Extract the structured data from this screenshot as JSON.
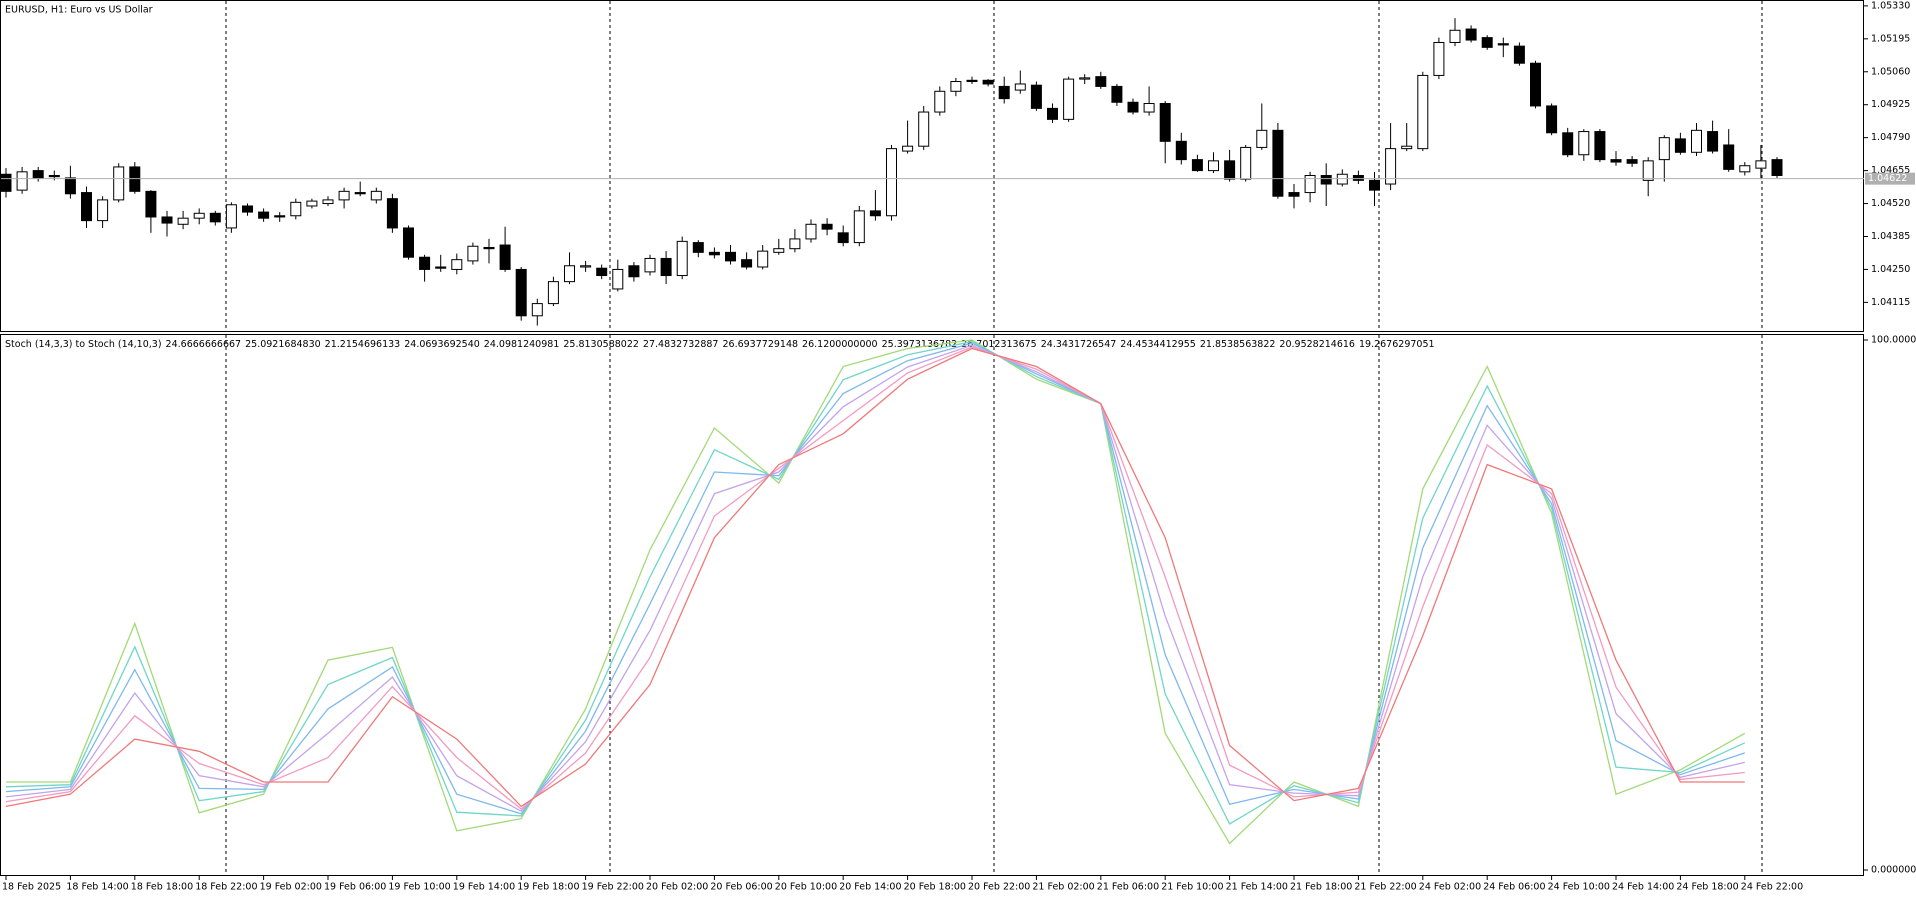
{
  "chart_data": [
    {
      "type": "candlestick",
      "title": "EURUSD, H1:  Euro vs US Dollar",
      "open": [
        1.0464,
        1.04575,
        1.04655,
        1.04635,
        1.04625,
        1.04565,
        1.0445,
        1.04535,
        1.0467,
        1.0457,
        1.04465,
        1.04435,
        1.0446,
        1.0448,
        1.0442,
        1.0451,
        1.04485,
        1.0447,
        1.0447,
        1.0451,
        1.0452,
        1.04535,
        1.04565,
        1.04535,
        1.0454,
        1.0442,
        1.043,
        1.0426,
        1.0425,
        1.04285,
        1.0434,
        1.0435,
        1.0425,
        1.0406,
        1.0411,
        1.042,
        1.0426,
        1.04255,
        1.0417,
        1.04265,
        1.0424,
        1.04295,
        1.04225,
        1.0436,
        1.0432,
        1.0432,
        1.0429,
        1.0426,
        1.0432,
        1.04335,
        1.04375,
        1.04435,
        1.044,
        1.0436,
        1.0449,
        1.0447,
        1.04735,
        1.04755,
        1.04895,
        1.0498,
        1.05025,
        1.05025,
        1.05,
        1.04985,
        1.05005,
        1.0491,
        1.04865,
        1.0503,
        1.0504,
        1.05,
        1.04935,
        1.04895,
        1.0493,
        1.04775,
        1.047,
        1.04655,
        1.04695,
        1.0462,
        1.0475,
        1.0482,
        1.04565,
        1.04565,
        1.04635,
        1.046,
        1.04635,
        1.04615,
        1.046,
        1.04745,
        1.04745,
        1.05045,
        1.0518,
        1.05235,
        1.052,
        1.05175,
        1.05165,
        1.05095,
        1.0492,
        1.0481,
        1.0472,
        1.04815,
        1.047,
        1.047,
        1.04615,
        1.047,
        1.04785,
        1.0473,
        1.04815,
        1.0476,
        1.0465,
        1.04665,
        1.047
      ],
      "high": [
        1.04665,
        1.0467,
        1.0467,
        1.04655,
        1.04675,
        1.0459,
        1.0455,
        1.04685,
        1.0469,
        1.04575,
        1.0449,
        1.0449,
        1.045,
        1.0449,
        1.04525,
        1.0452,
        1.045,
        1.04485,
        1.0454,
        1.0454,
        1.0455,
        1.04585,
        1.0461,
        1.04585,
        1.0456,
        1.0443,
        1.0431,
        1.0431,
        1.04315,
        1.0436,
        1.04375,
        1.04425,
        1.0426,
        1.0413,
        1.0422,
        1.0432,
        1.04285,
        1.0427,
        1.0429,
        1.0428,
        1.0431,
        1.04325,
        1.04385,
        1.0437,
        1.0434,
        1.0435,
        1.0432,
        1.0435,
        1.04375,
        1.04415,
        1.04455,
        1.0446,
        1.0443,
        1.0451,
        1.04575,
        1.0476,
        1.0486,
        1.0492,
        1.05,
        1.05035,
        1.0504,
        1.0503,
        1.0504,
        1.05065,
        1.0502,
        1.0493,
        1.0504,
        1.0505,
        1.0506,
        1.0501,
        1.0495,
        1.05,
        1.0494,
        1.0481,
        1.0472,
        1.0473,
        1.0474,
        1.0476,
        1.0493,
        1.0485,
        1.046,
        1.0465,
        1.04685,
        1.0466,
        1.04655,
        1.0465,
        1.0485,
        1.0485,
        1.0506,
        1.052,
        1.0528,
        1.0525,
        1.0521,
        1.052,
        1.0518,
        1.05105,
        1.0493,
        1.0483,
        1.04825,
        1.04825,
        1.04735,
        1.04715,
        1.0471,
        1.048,
        1.0481,
        1.0485,
        1.0486,
        1.04825,
        1.0469,
        1.0476,
        1.0471
      ],
      "low": [
        1.04545,
        1.0456,
        1.0461,
        1.04615,
        1.0454,
        1.0442,
        1.0442,
        1.04525,
        1.0456,
        1.044,
        1.04385,
        1.04415,
        1.04435,
        1.0443,
        1.044,
        1.0447,
        1.04445,
        1.04445,
        1.04455,
        1.045,
        1.0451,
        1.045,
        1.0455,
        1.0452,
        1.044,
        1.0429,
        1.042,
        1.0424,
        1.0423,
        1.0427,
        1.04275,
        1.0424,
        1.0404,
        1.0402,
        1.041,
        1.0419,
        1.0424,
        1.0421,
        1.0416,
        1.042,
        1.04225,
        1.0419,
        1.0421,
        1.043,
        1.04295,
        1.0427,
        1.0425,
        1.0425,
        1.0431,
        1.0432,
        1.0436,
        1.0439,
        1.04345,
        1.04345,
        1.0445,
        1.0445,
        1.04725,
        1.0474,
        1.0488,
        1.0496,
        1.0501,
        1.05,
        1.0493,
        1.0497,
        1.049,
        1.0485,
        1.04855,
        1.0501,
        1.0499,
        1.0492,
        1.04885,
        1.0488,
        1.04685,
        1.0468,
        1.0465,
        1.04645,
        1.0461,
        1.0461,
        1.0474,
        1.0454,
        1.045,
        1.04525,
        1.0451,
        1.0459,
        1.046,
        1.0451,
        1.04575,
        1.04735,
        1.04735,
        1.0503,
        1.05165,
        1.0518,
        1.0515,
        1.0512,
        1.05085,
        1.0491,
        1.048,
        1.0471,
        1.04695,
        1.0469,
        1.04675,
        1.0467,
        1.0455,
        1.0461,
        1.0472,
        1.04715,
        1.04725,
        1.0465,
        1.04635,
        1.0462,
        1.04625
      ],
      "close": [
        1.0457,
        1.0465,
        1.04625,
        1.0463,
        1.0456,
        1.0445,
        1.04535,
        1.0467,
        1.0457,
        1.04465,
        1.0444,
        1.0446,
        1.0448,
        1.04445,
        1.04515,
        1.04485,
        1.0446,
        1.04465,
        1.04525,
        1.0453,
        1.04535,
        1.0457,
        1.0456,
        1.0457,
        1.0442,
        1.043,
        1.0425,
        1.04255,
        1.0429,
        1.04345,
        1.04335,
        1.0425,
        1.0406,
        1.0411,
        1.042,
        1.04265,
        1.04265,
        1.04225,
        1.0425,
        1.0422,
        1.04295,
        1.04225,
        1.04365,
        1.0432,
        1.0431,
        1.04285,
        1.0426,
        1.04325,
        1.04335,
        1.04375,
        1.04435,
        1.04415,
        1.0436,
        1.0449,
        1.0447,
        1.04745,
        1.04755,
        1.04895,
        1.0498,
        1.0502,
        1.0502,
        1.0501,
        1.0495,
        1.0501,
        1.0491,
        1.04865,
        1.0503,
        1.05035,
        1.05,
        1.04935,
        1.04895,
        1.0493,
        1.04775,
        1.047,
        1.04655,
        1.04695,
        1.0462,
        1.0475,
        1.0482,
        1.0455,
        1.0455,
        1.04635,
        1.046,
        1.0464,
        1.04615,
        1.04575,
        1.04745,
        1.04755,
        1.05045,
        1.0518,
        1.0523,
        1.0519,
        1.0516,
        1.0517,
        1.05095,
        1.0492,
        1.0481,
        1.0472,
        1.04815,
        1.047,
        1.0469,
        1.04685,
        1.04695,
        1.0479,
        1.0473,
        1.0482,
        1.04735,
        1.0466,
        1.04675,
        1.04695,
        1.04635
      ],
      "up_color": "#ffffff",
      "down_color": "#000000",
      "ylim": [
        1.0401,
        1.0535
      ],
      "yticks": [
        {
          "value": 1.0533,
          "label": "1.05330"
        },
        1.05195,
        {
          "value": 1.0506,
          "label": "1.05060"
        },
        1.04925,
        {
          "value": 1.0479,
          "label": "1.04790"
        },
        1.04655,
        {
          "value": 1.0452,
          "label": "1.04520"
        },
        1.04385,
        {
          "value": 1.0425,
          "label": "1.04250"
        },
        1.04115
      ],
      "last_price": 1.04622
    },
    {
      "type": "line",
      "title": "Stoch (14,3,3) to Stoch (14,10,3)",
      "status_values": [
        "24.6666666667",
        "25.0921684830",
        "21.2154696133",
        "24.0693692540",
        "24.0981240981",
        "25.8130588022",
        "27.4832732887",
        "26.6937729148",
        "26.1200000000",
        "25.3973136782",
        "26.7012313675",
        "24.3431726547",
        "24.4534412955",
        "21.8538563822",
        "20.9528214616",
        "19.2676297051"
      ],
      "categories": [
        "18 Feb 2025",
        "18 Feb 14:00",
        "18 Feb 18:00",
        "18 Feb 22:00",
        "19 Feb 02:00",
        "19 Feb 06:00",
        "19 Feb 10:00",
        "19 Feb 14:00",
        "19 Feb 18:00",
        "19 Feb 22:00",
        "20 Feb 02:00",
        "20 Feb 06:00",
        "20 Feb 10:00",
        "20 Feb 14:00",
        "20 Feb 18:00",
        "20 Feb 22:00",
        "21 Feb 02:00",
        "21 Feb 06:00",
        "21 Feb 10:00",
        "21 Feb 14:00",
        "21 Feb 18:00",
        "21 Feb 22:00",
        "24 Feb 02:00",
        "24 Feb 06:00",
        "24 Feb 10:00",
        "24 Feb 14:00",
        "24 Feb 18:00",
        "24 Feb 22:00"
      ],
      "series": [
        {
          "color": "#a3d977",
          "values": [
            16.6,
            16.6,
            46.5,
            10.8,
            14.3,
            39.6,
            42,
            7.4,
            9.7,
            30.4,
            60.4,
            83.4,
            73,
            95,
            98.4,
            100,
            92.6,
            88,
            25.8,
            5,
            16.6,
            12,
            71.9,
            95,
            67.3,
            14.3,
            18.9,
            25.8
          ]
        },
        {
          "color": "#6fd6c8",
          "values": [
            15.7,
            16.1,
            42.1,
            13.1,
            14.8,
            35,
            40.1,
            10.9,
            10.2,
            28.3,
            55.3,
            79.3,
            73.7,
            92.5,
            97.2,
            99.7,
            93.1,
            88,
            33.2,
            8.7,
            15.9,
            12.7,
            66.4,
            91.3,
            68.2,
            19.4,
            18.4,
            24
          ]
        },
        {
          "color": "#7fb8ee",
          "values": [
            14.8,
            15.7,
            37.8,
            15.4,
            15.2,
            30.4,
            38.3,
            14.3,
            10.6,
            26.2,
            50.2,
            75.1,
            74.4,
            89.9,
            96.1,
            99.4,
            93.6,
            88,
            40.6,
            12.4,
            15.2,
            13.4,
            60.8,
            87.6,
            69.1,
            24.4,
            18,
            22.1
          ]
        },
        {
          "color": "#c4a3ec",
          "values": [
            13.8,
            15.2,
            33.4,
            17.8,
            15.7,
            25.8,
            36.4,
            17.8,
            11.1,
            24.2,
            45.2,
            71,
            75.1,
            87.4,
            94.9,
            99,
            94,
            88,
            47.9,
            16.1,
            14.5,
            14,
            55.3,
            83.9,
            70.1,
            29.5,
            17.5,
            20.3
          ]
        },
        {
          "color": "#f29bc0",
          "values": [
            12.9,
            14.8,
            29.1,
            20.1,
            16.1,
            21.2,
            34.6,
            21.2,
            11.5,
            22.1,
            40.1,
            66.8,
            75.8,
            84.8,
            93.8,
            98.7,
            94.5,
            88,
            55.3,
            19.8,
            13.8,
            14.7,
            49.7,
            80.2,
            71,
            34.5,
            17.1,
            18.4
          ]
        },
        {
          "color": "#f07878",
          "values": [
            12,
            14.3,
            24.7,
            22.4,
            16.6,
            16.6,
            32.7,
            24.7,
            12,
            20,
            35,
            62.7,
            76.5,
            82.3,
            92.6,
            98.4,
            95,
            88,
            62.7,
            23.5,
            13.1,
            15.4,
            44.2,
            76.5,
            71.9,
            39.6,
            16.6,
            16.6
          ]
        }
      ],
      "ylim": [
        0,
        100
      ],
      "yticks": [
        {
          "value": 100,
          "label": "100.000000"
        },
        {
          "value": 0,
          "label": "0.000000"
        }
      ]
    }
  ]
}
